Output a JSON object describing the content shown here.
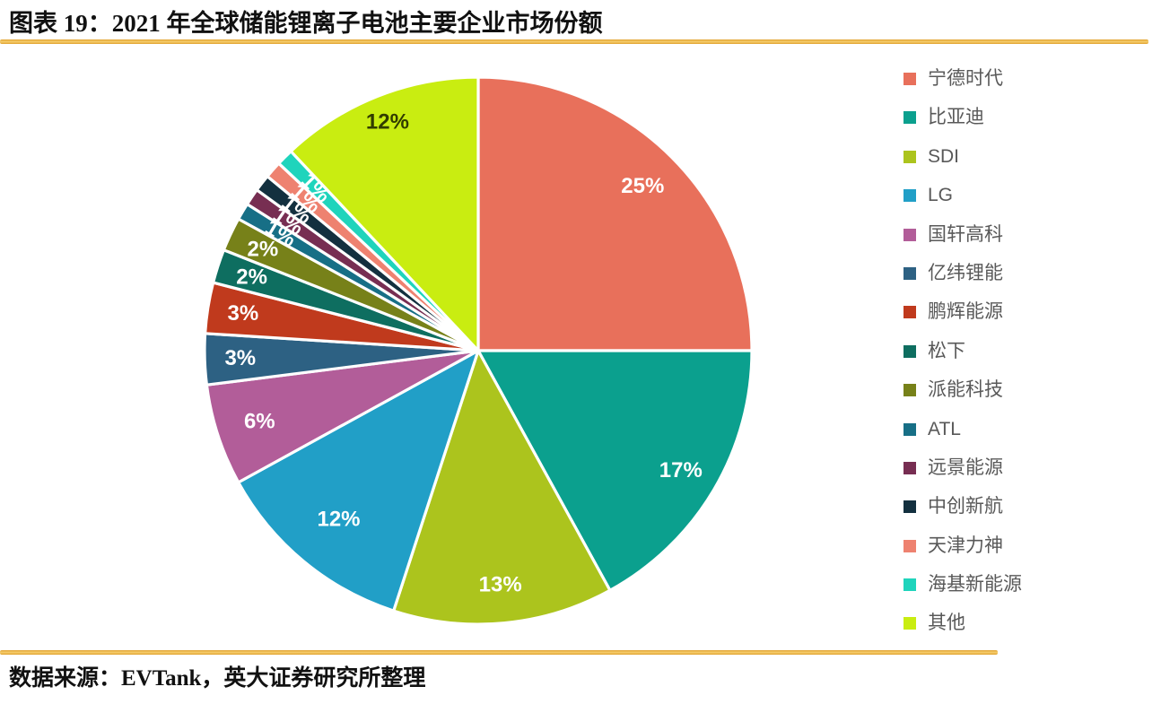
{
  "header": {
    "title": "图表 19：2021 年全球储能锂离子电池主要企业市场份额"
  },
  "footer": {
    "source": "数据来源：EVTank，英大证券研究所整理"
  },
  "accent_color": "#E5A634",
  "chart_data": {
    "type": "pie",
    "title": "2021 年全球储能锂离子电池主要企业市场份额",
    "unit": "percent",
    "start_angle_deg": 0,
    "direction": "clockwise",
    "legend_position": "right",
    "label_text_color_default": "#FFFFFF",
    "segments": [
      {
        "name": "宁德时代",
        "value": 25,
        "label": "25%",
        "color": "#E8705B",
        "label_color": "#FFFFFF",
        "label_r": 0.85,
        "rotate_label": false
      },
      {
        "name": "比亚迪",
        "value": 17,
        "label": "17%",
        "color": "#0BA08E",
        "label_color": "#FFFFFF",
        "label_r": 0.86,
        "rotate_label": false
      },
      {
        "name": "SDI",
        "value": 13,
        "label": "13%",
        "color": "#ACC41D",
        "label_color": "#FFFFFF",
        "label_r": 0.86,
        "rotate_label": false
      },
      {
        "name": "LG",
        "value": 12,
        "label": "12%",
        "color": "#219FC7",
        "label_color": "#FFFFFF",
        "label_r": 0.8,
        "rotate_label": false
      },
      {
        "name": "国轩高科",
        "value": 6,
        "label": "6%",
        "color": "#B25D99",
        "label_color": "#FFFFFF",
        "label_r": 0.84,
        "rotate_label": false
      },
      {
        "name": "亿纬锂能",
        "value": 3,
        "label": "3%",
        "color": "#2D6183",
        "label_color": "#FFFFFF",
        "label_r": 0.87,
        "rotate_label": false
      },
      {
        "name": "鹏辉能源",
        "value": 3,
        "label": "3%",
        "color": "#C03A1D",
        "label_color": "#FFFFFF",
        "label_r": 0.87,
        "rotate_label": false
      },
      {
        "name": "松下",
        "value": 2,
        "label": "2%",
        "color": "#0E6E60",
        "label_color": "#FFFFFF",
        "label_r": 0.87,
        "rotate_label": false
      },
      {
        "name": "派能科技",
        "value": 2,
        "label": "2%",
        "color": "#778119",
        "label_color": "#FFFFFF",
        "label_r": 0.87,
        "rotate_label": false
      },
      {
        "name": "ATL",
        "value": 1,
        "label": "1%",
        "color": "#176F86",
        "label_color": "#FFFFFF",
        "label_r": 0.84,
        "rotate_label": true
      },
      {
        "name": "远景能源",
        "value": 1,
        "label": "1%",
        "color": "#772E52",
        "label_color": "#FFFFFF",
        "label_r": 0.84,
        "rotate_label": true
      },
      {
        "name": "中创新航",
        "value": 1,
        "label": "1%",
        "color": "#13303F",
        "label_color": "#FFFFFF",
        "label_r": 0.84,
        "rotate_label": true
      },
      {
        "name": "天津力神",
        "value": 1,
        "label": "1%",
        "color": "#EE8270",
        "label_color": "#FFFFFF",
        "label_r": 0.84,
        "rotate_label": true
      },
      {
        "name": "海基新能源",
        "value": 1,
        "label": "1%",
        "color": "#1FD4BC",
        "label_color": "#FFFFFF",
        "label_r": 0.84,
        "rotate_label": true
      },
      {
        "name": "其他",
        "value": 12,
        "label": "12%",
        "color": "#C9ED11",
        "label_color": "#313C00",
        "label_r": 0.9,
        "rotate_label": false
      }
    ]
  }
}
